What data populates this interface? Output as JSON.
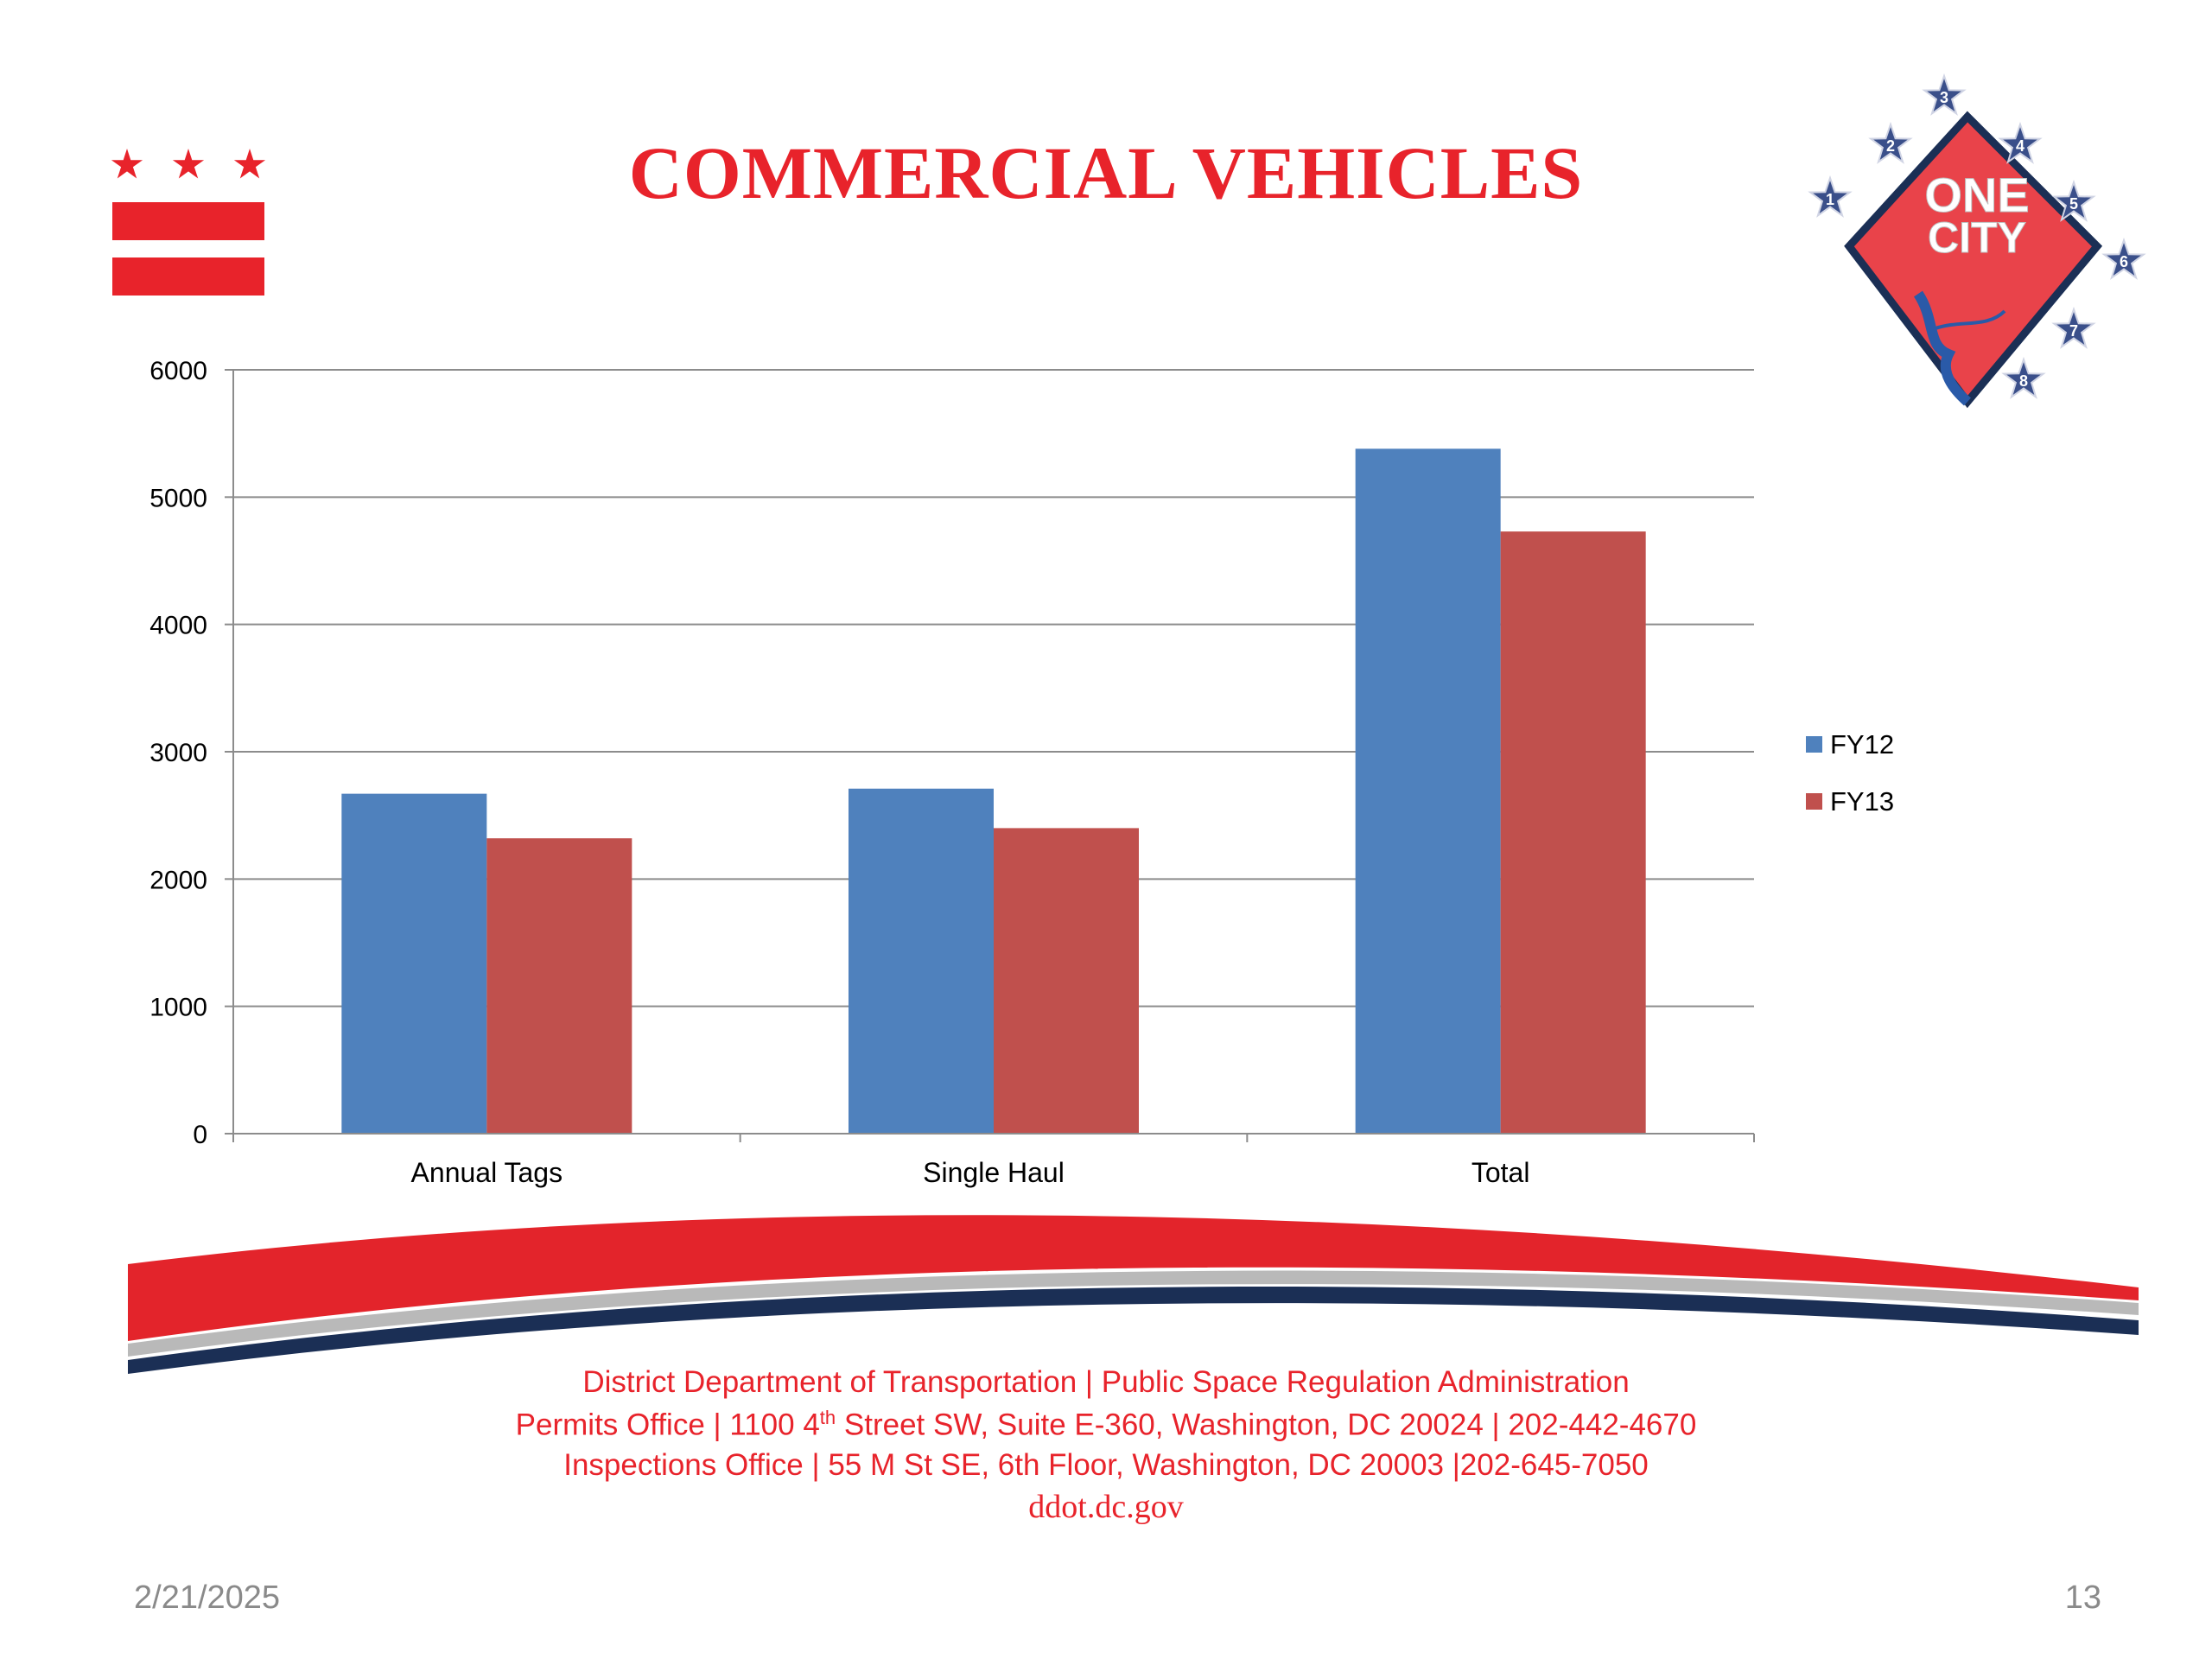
{
  "slide": {
    "title": "COMMERCIAL VEHICLES",
    "date": "2/21/2025",
    "page_number": "13"
  },
  "footer": {
    "line1": "District Department of Transportation | Public Space Regulation Administration",
    "line2_before": "Permits Office | 1100 4",
    "line2_sup": "th",
    "line2_after": " Street SW, Suite E-360, Washington, DC 20024 | 202-442-4670",
    "line3": "Inspections Office | 55 M St SE, 6th Floor, Washington, DC 20003  |202-645-7050",
    "website": "ddot.dc.gov"
  },
  "logo": {
    "text_line1": "ONE",
    "text_line2": "CITY",
    "star_numbers": [
      "1",
      "2",
      "3",
      "4",
      "5",
      "6",
      "7",
      "8"
    ]
  },
  "colors": {
    "brand_red": "#e8232b",
    "fy12": "#4f81bd",
    "fy13": "#c0504d",
    "navy": "#1b2f55"
  },
  "chart_data": {
    "type": "bar",
    "categories": [
      "Annual Tags",
      "Single Haul",
      "Total"
    ],
    "series": [
      {
        "name": "FY12",
        "values": [
          2670,
          2710,
          5380
        ]
      },
      {
        "name": "FY13",
        "values": [
          2320,
          2400,
          4730
        ]
      }
    ],
    "ylim": [
      0,
      6000
    ],
    "yticks": [
      0,
      1000,
      2000,
      3000,
      4000,
      5000,
      6000
    ],
    "grid": true,
    "legend_position": "right"
  }
}
